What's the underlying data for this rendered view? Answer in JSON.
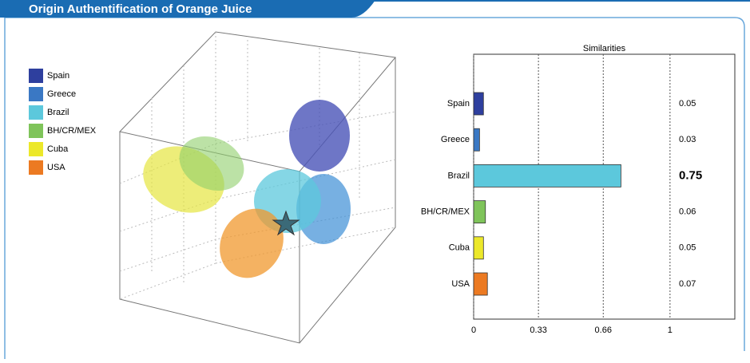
{
  "title": "Origin Authentification of Orange Juice",
  "chart_data": {
    "type": "bar",
    "orientation": "horizontal",
    "title": "Similarities",
    "categories": [
      "Spain",
      "Greece",
      "Brazil",
      "BH/CR/MEX",
      "Cuba",
      "USA"
    ],
    "values": [
      0.05,
      0.03,
      0.75,
      0.06,
      0.05,
      0.07
    ],
    "colors": [
      "#2e3f9e",
      "#3a78c4",
      "#5cc8dc",
      "#7fc45a",
      "#ece82a",
      "#ec7a22"
    ],
    "xlim": [
      0,
      1.33
    ],
    "xticks": [
      0,
      0.33,
      0.66,
      1
    ],
    "grid": true
  }
}
